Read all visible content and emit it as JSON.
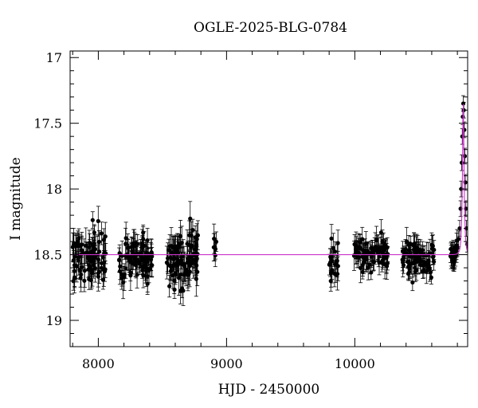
{
  "chart_data": {
    "type": "scatter",
    "title": "OGLE-2025-BLG-0784",
    "xlabel": "HJD - 2450000",
    "ylabel": "I magnitude",
    "xlim": [
      7780,
      10880
    ],
    "ylim": [
      19.2,
      16.95
    ],
    "y_axis_inverted": true,
    "xticks": [
      8000,
      9000,
      10000
    ],
    "yticks": [
      17,
      17.5,
      18,
      18.5,
      19
    ],
    "ytick_labels": [
      "17",
      "17.5",
      "18",
      "18.5",
      "19"
    ],
    "colors": {
      "data": "#000000",
      "model": "#cc33cc"
    },
    "baseline_magnitude": 18.5,
    "series": [
      {
        "type": "scatter_with_errorbars",
        "observing_seasons": [
          {
            "x_range": [
              7800,
              8060
            ],
            "mean_mag": 18.52,
            "scatter": 0.09,
            "typical_error": 0.1,
            "n_points": 90
          },
          {
            "x_range": [
              8160,
              8420
            ],
            "mean_mag": 18.52,
            "scatter": 0.07,
            "typical_error": 0.09,
            "n_points": 90
          },
          {
            "x_range": [
              8530,
              8780
            ],
            "mean_mag": 18.53,
            "scatter": 0.1,
            "typical_error": 0.1,
            "n_points": 90
          },
          {
            "x_range": [
              8900,
              8930
            ],
            "mean_mag": 18.48,
            "scatter": 0.06,
            "typical_error": 0.08,
            "n_points": 6
          },
          {
            "x_range": [
              9800,
              9870
            ],
            "mean_mag": 18.55,
            "scatter": 0.08,
            "typical_error": 0.09,
            "n_points": 20
          },
          {
            "x_range": [
              9990,
              10260
            ],
            "mean_mag": 18.5,
            "scatter": 0.06,
            "typical_error": 0.08,
            "n_points": 80
          },
          {
            "x_range": [
              10370,
              10620
            ],
            "mean_mag": 18.53,
            "scatter": 0.06,
            "typical_error": 0.08,
            "n_points": 80
          },
          {
            "x_range": [
              10740,
              10800
            ],
            "mean_mag": 18.5,
            "scatter": 0.05,
            "typical_error": 0.07,
            "n_points": 25
          }
        ],
        "event_points": [
          {
            "x": 10800,
            "y": 18.45
          },
          {
            "x": 10810,
            "y": 18.38
          },
          {
            "x": 10818,
            "y": 18.3
          },
          {
            "x": 10825,
            "y": 18.15
          },
          {
            "x": 10830,
            "y": 18.0
          },
          {
            "x": 10834,
            "y": 17.8
          },
          {
            "x": 10838,
            "y": 17.6
          },
          {
            "x": 10842,
            "y": 17.45
          },
          {
            "x": 10846,
            "y": 17.35
          },
          {
            "x": 10850,
            "y": 17.4
          },
          {
            "x": 10854,
            "y": 17.55
          },
          {
            "x": 10858,
            "y": 17.75
          },
          {
            "x": 10862,
            "y": 17.95
          },
          {
            "x": 10866,
            "y": 18.15
          },
          {
            "x": 10870,
            "y": 18.3
          },
          {
            "x": 10876,
            "y": 18.42
          }
        ]
      },
      {
        "type": "model_line",
        "baseline": 18.5,
        "peak_x": 10846,
        "peak_mag": 17.35,
        "t_E": 12
      }
    ]
  }
}
